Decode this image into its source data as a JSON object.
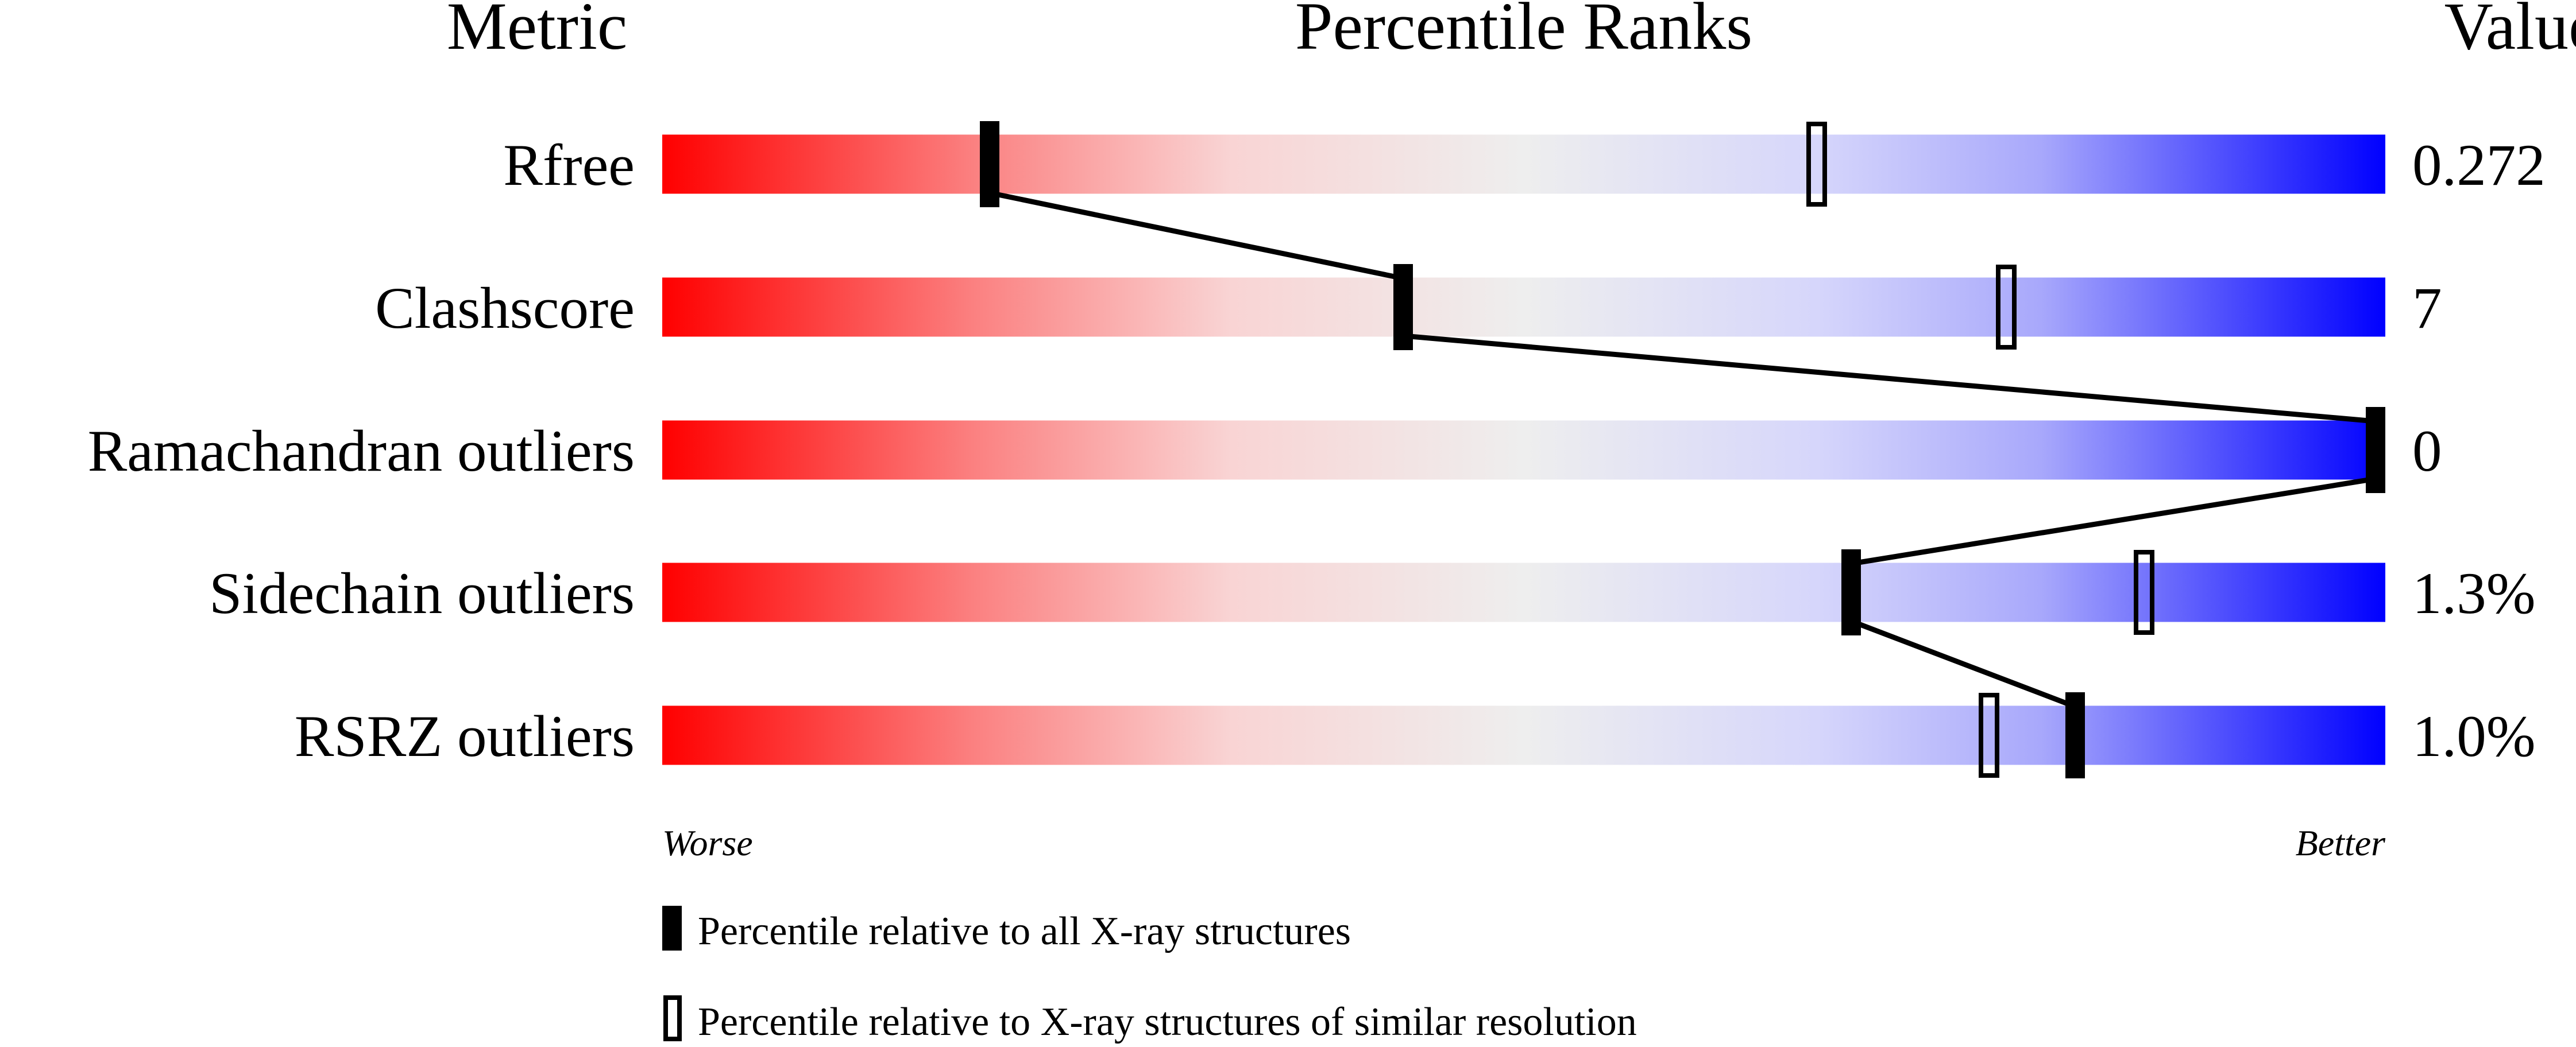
{
  "chart_data": {
    "type": "bar",
    "title": "",
    "headers": {
      "metric": "Metric",
      "percentile": "Percentile Ranks",
      "value": "Value"
    },
    "xlim": [
      0,
      100
    ],
    "axis_labels": {
      "left": "Worse",
      "right": "Better"
    },
    "gradient_colors": [
      "#ff0000",
      "#eeeeee",
      "#0000ff"
    ],
    "metrics": [
      {
        "name": "Rfree",
        "value": "0.272",
        "percentile_all": 19,
        "percentile_similar": 67
      },
      {
        "name": "Clashscore",
        "value": "7",
        "percentile_all": 43,
        "percentile_similar": 78
      },
      {
        "name": "Ramachandran outliers",
        "value": "0",
        "percentile_all": 100,
        "percentile_similar": 100
      },
      {
        "name": "Sidechain outliers",
        "value": "1.3%",
        "percentile_all": 69,
        "percentile_similar": 86
      },
      {
        "name": "RSRZ outliers",
        "value": "1.0%",
        "percentile_all": 82,
        "percentile_similar": 77
      }
    ],
    "legend": {
      "filled": "Percentile relative to all X-ray structures",
      "open": "Percentile relative to X-ray structures of similar resolution"
    }
  }
}
